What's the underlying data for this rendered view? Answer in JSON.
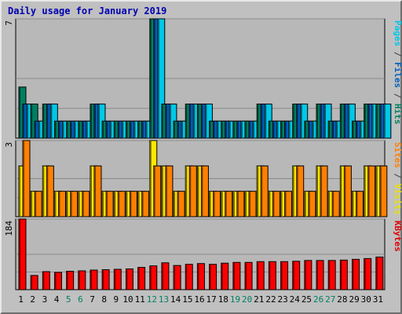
{
  "chart_data": {
    "type": "bar",
    "title": "Daily usage for January 2019",
    "categories": [
      "1",
      "2",
      "3",
      "4",
      "5",
      "6",
      "7",
      "8",
      "9",
      "10",
      "11",
      "12",
      "13",
      "14",
      "15",
      "16",
      "17",
      "18",
      "19",
      "20",
      "21",
      "22",
      "23",
      "24",
      "25",
      "26",
      "27",
      "28",
      "29",
      "30",
      "31"
    ],
    "weekend_days": [
      "5",
      "6",
      "12",
      "13",
      "19",
      "20",
      "26",
      "27"
    ],
    "panels": [
      {
        "ymax_label": "7",
        "ylim": [
          0,
          7
        ],
        "axis_label_parts": [
          {
            "text": "Pages",
            "color": "#00c8e8"
          },
          {
            "text": " / ",
            "color": "#404040"
          },
          {
            "text": "Files",
            "color": "#0060c0"
          },
          {
            "text": " / ",
            "color": "#404040"
          },
          {
            "text": "Hits",
            "color": "#008060"
          }
        ],
        "series": [
          {
            "name": "Hits",
            "color": "#008060",
            "values": [
              3,
              2,
              2,
              1,
              1,
              1,
              2,
              1,
              1,
              1,
              1,
              7,
              2,
              1,
              2,
              2,
              1,
              1,
              1,
              1,
              2,
              1,
              1,
              2,
              1,
              2,
              1,
              2,
              1,
              2,
              2
            ]
          },
          {
            "name": "Files",
            "color": "#0060c0",
            "values": [
              2,
              1,
              2,
              1,
              1,
              1,
              2,
              1,
              1,
              1,
              1,
              7,
              2,
              1,
              2,
              2,
              1,
              1,
              1,
              1,
              2,
              1,
              1,
              2,
              1,
              2,
              1,
              2,
              1,
              2,
              2
            ]
          },
          {
            "name": "Pages",
            "color": "#00c8e8",
            "values": [
              2,
              1,
              2,
              1,
              1,
              1,
              2,
              1,
              1,
              1,
              1,
              7,
              2,
              1,
              2,
              2,
              1,
              1,
              1,
              1,
              2,
              1,
              1,
              2,
              1,
              2,
              1,
              2,
              1,
              2,
              2
            ]
          }
        ]
      },
      {
        "ymax_label": "3",
        "ylim": [
          0,
          3
        ],
        "axis_label_parts": [
          {
            "text": "Sites",
            "color": "#ff8000"
          },
          {
            "text": " / ",
            "color": "#404040"
          },
          {
            "text": "Visits",
            "color": "#e8e000"
          }
        ],
        "series": [
          {
            "name": "Visits",
            "color": "#ffe800",
            "values": [
              2,
              1,
              2,
              1,
              1,
              1,
              2,
              1,
              1,
              1,
              1,
              3,
              2,
              1,
              2,
              2,
              1,
              1,
              1,
              1,
              2,
              1,
              1,
              2,
              1,
              2,
              1,
              2,
              1,
              2,
              2
            ]
          },
          {
            "name": "Sites",
            "color": "#ff8000",
            "values": [
              3,
              1,
              2,
              1,
              1,
              1,
              2,
              1,
              1,
              1,
              1,
              2,
              2,
              1,
              2,
              2,
              1,
              1,
              1,
              1,
              2,
              1,
              1,
              2,
              1,
              2,
              1,
              2,
              1,
              2,
              2
            ]
          }
        ]
      },
      {
        "ymax_label": "184",
        "ylim": [
          0,
          184
        ],
        "axis_label_parts": [
          {
            "text": "KBytes",
            "color": "#e00000"
          }
        ],
        "series": [
          {
            "name": "KBytes",
            "color": "#ff0000",
            "values": [
              184,
              37,
              47,
              45,
              48,
              49,
              51,
              52,
              53,
              54,
              58,
              62,
              70,
              63,
              66,
              68,
              66,
              69,
              71,
              71,
              73,
              73,
              73,
              74,
              76,
              76,
              76,
              77,
              79,
              81,
              85
            ]
          }
        ]
      }
    ]
  },
  "colors": {
    "plot_background": "#b8b8b8",
    "gridline": "#8a8a8a",
    "weekday_label": "#000000",
    "weekend_label": "#008060"
  }
}
